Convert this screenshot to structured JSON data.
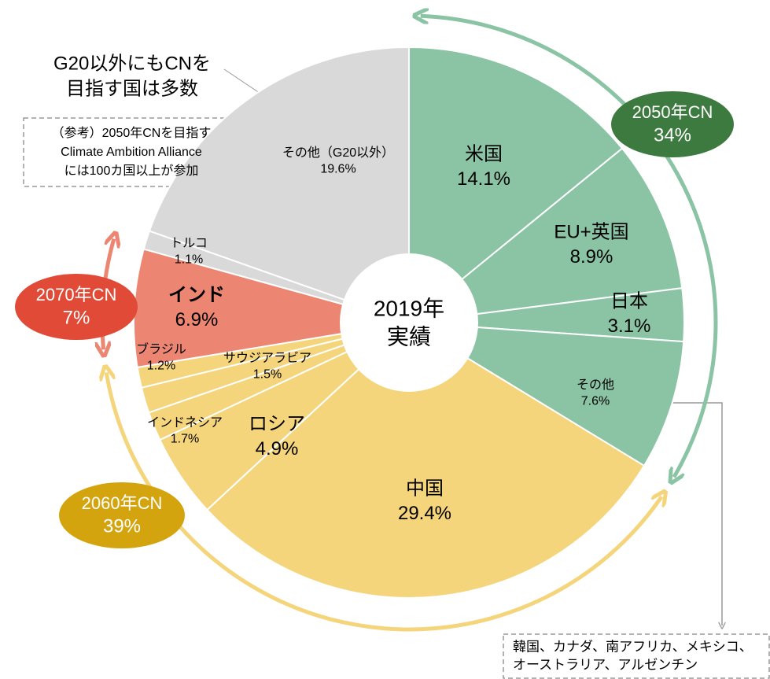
{
  "chart_data": {
    "type": "pie",
    "center_label": [
      "2019年",
      "実績"
    ],
    "categories": [
      "米国",
      "EU+英国",
      "日本",
      "その他",
      "中国",
      "ロシア",
      "インドネシア",
      "サウジアラビア",
      "ブラジル",
      "インド",
      "トルコ",
      "その他（G20以外）"
    ],
    "values": [
      14.1,
      8.9,
      3.1,
      7.6,
      29.4,
      4.9,
      1.7,
      1.5,
      1.2,
      6.9,
      1.1,
      19.6
    ],
    "value_labels": [
      "14.1%",
      "8.9%",
      "3.1%",
      "7.6%",
      "29.4%",
      "4.9%",
      "1.7%",
      "1.5%",
      "1.2%",
      "6.9%",
      "1.1%",
      "19.6%"
    ],
    "colors": [
      "#8bc4a5",
      "#8bc4a5",
      "#8bc4a5",
      "#8bc4a5",
      "#f5d57c",
      "#f5d57c",
      "#f5d57c",
      "#f5d57c",
      "#f5d57c",
      "#ec8672",
      "#d9d9d9",
      "#d9d9d9"
    ],
    "annotations": [
      {
        "label": "2050年CN",
        "value": 34,
        "value_label": "34%",
        "color": "#3d7a3f",
        "arc_color": "#8bc4a5"
      },
      {
        "label": "2060年CN",
        "value": 39,
        "value_label": "39%",
        "color": "#d4a40f",
        "arc_color": "#f5d57c"
      },
      {
        "label": "2070年CN",
        "value": 7,
        "value_label": "7%",
        "color": "#e04a36",
        "arc_color": "#ec8672"
      }
    ],
    "notes": {
      "others_title": [
        "G20以外にもCNを",
        "目指す国は多数"
      ],
      "reference": [
        "（参考）2050年CNを目指す",
        "Climate Ambition Alliance",
        "には100カ国以上が参加"
      ],
      "others_list": [
        "韓国、カナダ、南アフリカ、メキシコ、",
        "オーストラリア、アルゼンチン"
      ]
    }
  }
}
